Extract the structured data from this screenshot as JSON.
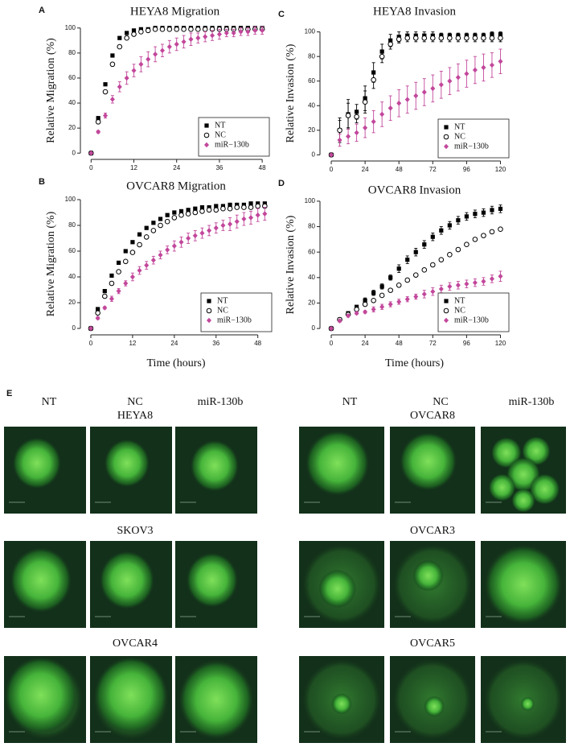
{
  "chart_data": [
    {
      "type": "scatter",
      "panel": "A",
      "title": "HEYA8 Migration",
      "y_label": "Relative Migration (%)",
      "x": [
        0,
        2,
        4,
        6,
        8,
        10,
        12,
        14,
        16,
        18,
        20,
        22,
        24,
        26,
        28,
        30,
        32,
        34,
        36,
        38,
        40,
        42,
        44,
        46,
        48
      ],
      "xlim": [
        -3,
        50
      ],
      "xticks": [
        0,
        12,
        24,
        36,
        48
      ],
      "ylim": [
        -5,
        105
      ],
      "yticks": [
        0,
        20,
        40,
        60,
        80,
        100
      ],
      "legend": "lower right",
      "series": [
        {
          "name": "NT",
          "color": "#000000",
          "marker": "square",
          "values": [
            0,
            28,
            55,
            78,
            92,
            96,
            98,
            99,
            99,
            100,
            100,
            100,
            100,
            100,
            100,
            100,
            100,
            100,
            100,
            100,
            100,
            100,
            100,
            100,
            100
          ]
        },
        {
          "name": "NC",
          "color": "#000000",
          "marker": "circle",
          "values": [
            0,
            25,
            49,
            71,
            85,
            92,
            95,
            97,
            98,
            99,
            99,
            99,
            99,
            99,
            99,
            99,
            99,
            99,
            99,
            99,
            99,
            99,
            99,
            99,
            99
          ]
        },
        {
          "name": "miR−130b",
          "color": "#c2479b",
          "marker": "diamond",
          "values": [
            0,
            17,
            30,
            43,
            53,
            60,
            66,
            71,
            75,
            79,
            82,
            85,
            87,
            89,
            91,
            92,
            93,
            94,
            95,
            96,
            96,
            97,
            97,
            98,
            98
          ],
          "errors": [
            0,
            1,
            2,
            3,
            4,
            5,
            5,
            6,
            6,
            6,
            5,
            5,
            5,
            5,
            5,
            4,
            4,
            4,
            4,
            3,
            3,
            3,
            3,
            3,
            3
          ]
        }
      ]
    },
    {
      "type": "scatter",
      "panel": "B",
      "title": "OVCAR8 Migration",
      "y_label": "Relative Migration (%)",
      "x_label": "Time (hours)",
      "x": [
        0,
        2,
        4,
        6,
        8,
        10,
        12,
        14,
        16,
        18,
        20,
        22,
        24,
        26,
        28,
        30,
        32,
        34,
        36,
        38,
        40,
        42,
        44,
        46,
        48,
        50
      ],
      "xlim": [
        -3,
        52
      ],
      "xticks": [
        0,
        12,
        24,
        36,
        48
      ],
      "ylim": [
        -5,
        105
      ],
      "yticks": [
        0,
        20,
        40,
        60,
        80,
        100
      ],
      "legend": "lower right",
      "series": [
        {
          "name": "NT",
          "color": "#000000",
          "marker": "square",
          "values": [
            0,
            15,
            29,
            41,
            51,
            60,
            67,
            73,
            78,
            82,
            85,
            88,
            90,
            91,
            92,
            93,
            94,
            94,
            95,
            95,
            96,
            96,
            96,
            97,
            97,
            97
          ]
        },
        {
          "name": "NC",
          "color": "#000000",
          "marker": "circle",
          "values": [
            0,
            12,
            25,
            35,
            44,
            52,
            59,
            65,
            71,
            76,
            80,
            83,
            86,
            88,
            89,
            90,
            91,
            92,
            92,
            93,
            93,
            94,
            94,
            94,
            95,
            95
          ]
        },
        {
          "name": "miR−130b",
          "color": "#c2479b",
          "marker": "diamond",
          "values": [
            0,
            8,
            16,
            23,
            29,
            35,
            40,
            45,
            49,
            53,
            57,
            61,
            64,
            67,
            70,
            72,
            74,
            76,
            78,
            80,
            81,
            83,
            85,
            86,
            88,
            89
          ],
          "errors": [
            0,
            1,
            1,
            2,
            2,
            2,
            3,
            3,
            3,
            3,
            3,
            3,
            4,
            4,
            4,
            4,
            4,
            4,
            4,
            4,
            5,
            5,
            5,
            5,
            5,
            5
          ]
        }
      ]
    },
    {
      "type": "scatter",
      "panel": "C",
      "title": "HEYA8 Invasion",
      "y_label": "Relative Invasion (%)",
      "x": [
        0,
        6,
        12,
        18,
        24,
        30,
        36,
        42,
        48,
        54,
        60,
        66,
        72,
        78,
        84,
        90,
        96,
        102,
        108,
        114,
        120
      ],
      "xlim": [
        -8,
        126
      ],
      "xticks": [
        0,
        24,
        48,
        72,
        96,
        120
      ],
      "ylim": [
        -5,
        105
      ],
      "yticks": [
        0,
        20,
        40,
        60,
        80,
        100
      ],
      "legend": "lower right",
      "series": [
        {
          "name": "NT",
          "color": "#000000",
          "marker": "square",
          "values": [
            0,
            20,
            33,
            35,
            46,
            67,
            84,
            93,
            96,
            97,
            97,
            97,
            97,
            97,
            97,
            97,
            97,
            97,
            97,
            98,
            98
          ],
          "errors": [
            0,
            10,
            12,
            6,
            10,
            8,
            6,
            5,
            4,
            3,
            3,
            3,
            3,
            2,
            2,
            2,
            2,
            2,
            2,
            2,
            2
          ]
        },
        {
          "name": "NC",
          "color": "#000000",
          "marker": "circle",
          "values": [
            0,
            20,
            32,
            31,
            43,
            61,
            80,
            90,
            94,
            95,
            95,
            95,
            95,
            95,
            95,
            95,
            95,
            95,
            95,
            95,
            95
          ],
          "errors": [
            0,
            8,
            10,
            5,
            9,
            7,
            5,
            4,
            3,
            3,
            3,
            3,
            3,
            3,
            3,
            3,
            3,
            3,
            3,
            3,
            3
          ]
        },
        {
          "name": "miR−130b",
          "color": "#c2479b",
          "marker": "diamond",
          "values": [
            0,
            12,
            15,
            18,
            22,
            27,
            33,
            38,
            42,
            45,
            48,
            51,
            54,
            57,
            60,
            63,
            66,
            69,
            71,
            73,
            76
          ],
          "errors": [
            0,
            5,
            6,
            7,
            8,
            9,
            10,
            10,
            11,
            11,
            11,
            11,
            11,
            11,
            11,
            11,
            11,
            11,
            11,
            10,
            10
          ]
        }
      ]
    },
    {
      "type": "scatter",
      "panel": "D",
      "title": "OVCAR8 Invasion",
      "y_label": "Relative Invasion (%)",
      "x_label": "Time (hours)",
      "x": [
        0,
        6,
        12,
        18,
        24,
        30,
        36,
        42,
        48,
        54,
        60,
        66,
        72,
        78,
        84,
        90,
        96,
        102,
        108,
        114,
        120
      ],
      "xlim": [
        -8,
        126
      ],
      "xticks": [
        0,
        24,
        48,
        72,
        96,
        120
      ],
      "ylim": [
        -5,
        105
      ],
      "yticks": [
        0,
        20,
        40,
        60,
        80,
        100
      ],
      "legend": "lower right",
      "series": [
        {
          "name": "NT",
          "color": "#000000",
          "marker": "square",
          "values": [
            0,
            7,
            12,
            17,
            22,
            28,
            33,
            40,
            47,
            54,
            60,
            66,
            72,
            77,
            81,
            85,
            88,
            90,
            91,
            93,
            94
          ],
          "errors": [
            0,
            1,
            1,
            1,
            2,
            2,
            2,
            2,
            3,
            3,
            3,
            3,
            3,
            3,
            3,
            3,
            3,
            3,
            3,
            3,
            3
          ]
        },
        {
          "name": "NC",
          "color": "#000000",
          "marker": "circle",
          "values": [
            0,
            7,
            11,
            15,
            19,
            22,
            26,
            30,
            34,
            38,
            42,
            46,
            50,
            54,
            58,
            62,
            66,
            70,
            73,
            76,
            78
          ]
        },
        {
          "name": "miR−130b",
          "color": "#c2479b",
          "marker": "diamond",
          "values": [
            0,
            6,
            10,
            12,
            13,
            15,
            17,
            19,
            21,
            23,
            25,
            27,
            29,
            31,
            33,
            34,
            35,
            36,
            37,
            39,
            41
          ],
          "errors": [
            0,
            1,
            1,
            1,
            1,
            2,
            2,
            2,
            2,
            2,
            2,
            3,
            3,
            3,
            3,
            3,
            3,
            3,
            3,
            3,
            4
          ]
        }
      ]
    }
  ],
  "panel_e": {
    "label": "E",
    "groups": [
      {
        "columns": [
          "NT",
          "NC",
          "miR-130b"
        ],
        "rows": [
          "HEYA8",
          "SKOV3",
          "OVCAR4"
        ]
      },
      {
        "columns": [
          "NT",
          "NC",
          "miR-130b"
        ],
        "rows": [
          "OVCAR8",
          "OVCAR3",
          "OVCAR5"
        ]
      }
    ]
  }
}
